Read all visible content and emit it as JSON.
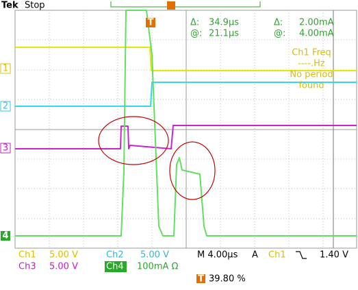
{
  "header": {
    "brand": "Tek",
    "status": "Stop",
    "trigger_marker": "T"
  },
  "cursors": {
    "row1": [
      "Δ:",
      "34.9µs",
      "Δ:",
      "2.00mA"
    ],
    "row2": [
      "@:",
      "21.1µs",
      "@:",
      "4.00mA"
    ]
  },
  "measurement": {
    "lines": [
      "Ch1 Freq",
      "----.Hz",
      "No period",
      "found"
    ]
  },
  "channel_markers": [
    "1",
    "2",
    "3",
    "4"
  ],
  "readout": {
    "ch1": {
      "label": "Ch1",
      "scale": "5.00 V"
    },
    "ch2": {
      "label": "Ch2",
      "scale": "5.00 V"
    },
    "ch3": {
      "label": "Ch3",
      "scale": "5.00 V"
    },
    "ch4": {
      "label": "Ch4",
      "scale": "100mA Ω"
    },
    "timebase": "M 4.00µs",
    "trigger_mode": "A",
    "trigger_source": "Ch1",
    "trigger_level": "1.40 V",
    "trigger_position_marker": "T",
    "trigger_position": "39.80 %"
  }
}
